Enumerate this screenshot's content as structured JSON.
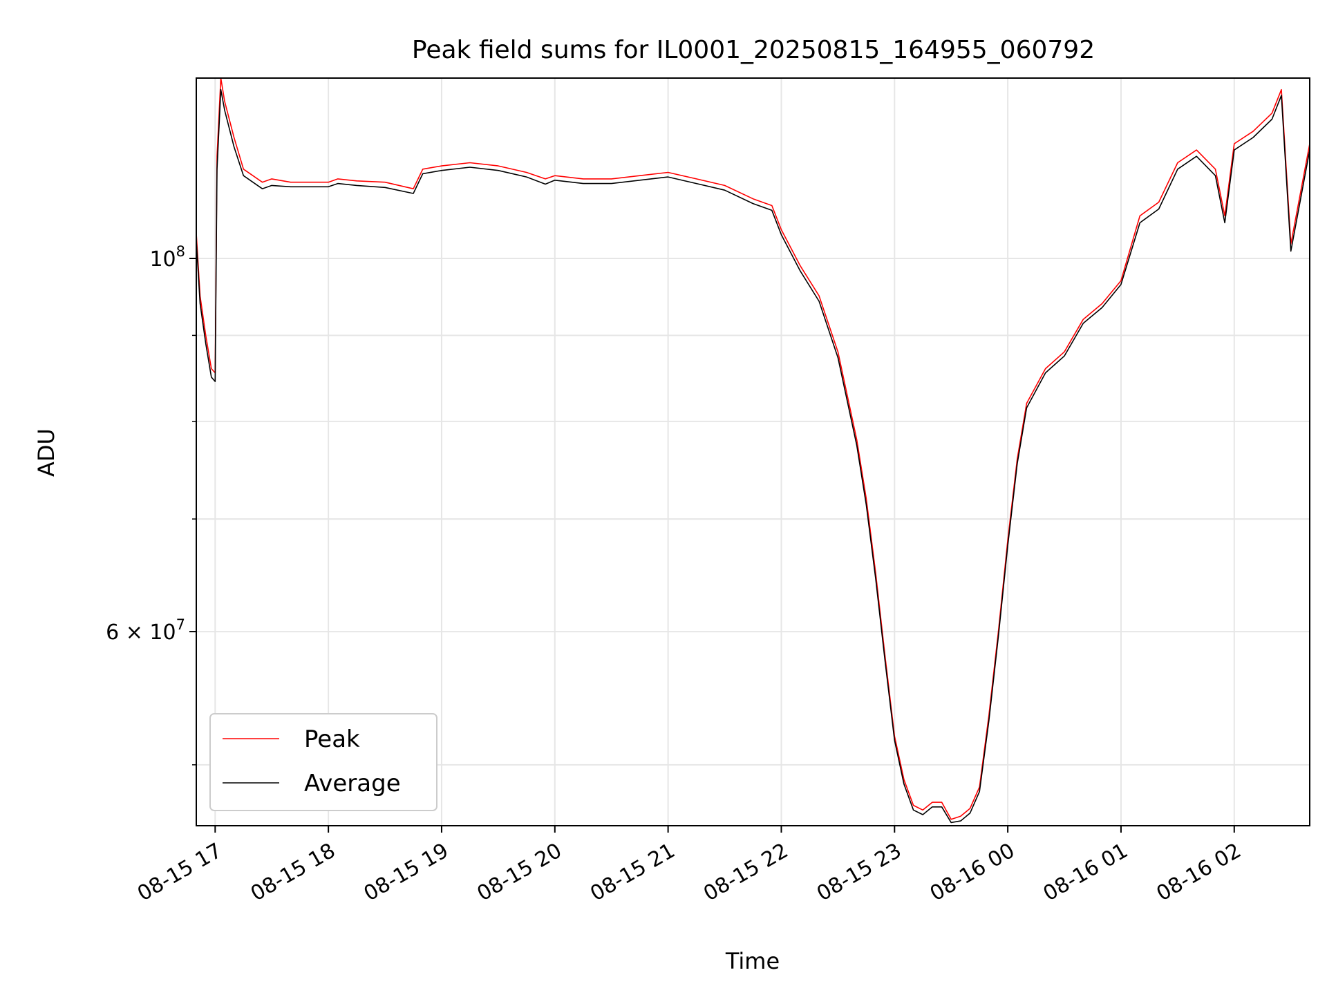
{
  "chart_data": {
    "type": "line",
    "title": "Peak field sums for IL0001_20250815_164955_060792",
    "xlabel": "Time",
    "ylabel": "ADU",
    "yscale": "log",
    "grid": true,
    "legend_position": "lower-left",
    "x_range": [
      "2025-08-15 16:50",
      "2025-08-16 02:40"
    ],
    "ylim": [
      46000000,
      128000000
    ],
    "x_ticks": [
      "08-15 17",
      "08-15 18",
      "08-15 19",
      "08-15 20",
      "08-15 21",
      "08-15 22",
      "08-15 23",
      "08-16 00",
      "08-16 01",
      "08-16 02"
    ],
    "y_ticks": [
      {
        "value": 100000000,
        "base": "10",
        "exp": "8",
        "mant": ""
      },
      {
        "value": 60000000,
        "base": "10",
        "exp": "7",
        "mant": "6 × "
      }
    ],
    "y_minor_ticks": [
      50000000,
      70000000,
      80000000,
      90000000
    ],
    "x": [
      "2025-08-15 16:50",
      "2025-08-15 16:52",
      "2025-08-15 16:55",
      "2025-08-15 16:58",
      "2025-08-15 17:00",
      "2025-08-15 17:01",
      "2025-08-15 17:03",
      "2025-08-15 17:05",
      "2025-08-15 17:10",
      "2025-08-15 17:15",
      "2025-08-15 17:20",
      "2025-08-15 17:25",
      "2025-08-15 17:30",
      "2025-08-15 17:40",
      "2025-08-15 17:50",
      "2025-08-15 18:00",
      "2025-08-15 18:05",
      "2025-08-15 18:15",
      "2025-08-15 18:30",
      "2025-08-15 18:45",
      "2025-08-15 18:50",
      "2025-08-15 19:00",
      "2025-08-15 19:15",
      "2025-08-15 19:30",
      "2025-08-15 19:45",
      "2025-08-15 19:55",
      "2025-08-15 20:00",
      "2025-08-15 20:15",
      "2025-08-15 20:30",
      "2025-08-15 20:45",
      "2025-08-15 21:00",
      "2025-08-15 21:15",
      "2025-08-15 21:30",
      "2025-08-15 21:45",
      "2025-08-15 21:55",
      "2025-08-15 22:00",
      "2025-08-15 22:10",
      "2025-08-15 22:20",
      "2025-08-15 22:30",
      "2025-08-15 22:40",
      "2025-08-15 22:45",
      "2025-08-15 22:50",
      "2025-08-15 22:55",
      "2025-08-15 23:00",
      "2025-08-15 23:05",
      "2025-08-15 23:10",
      "2025-08-15 23:15",
      "2025-08-15 23:20",
      "2025-08-15 23:25",
      "2025-08-15 23:30",
      "2025-08-15 23:35",
      "2025-08-15 23:40",
      "2025-08-15 23:45",
      "2025-08-15 23:50",
      "2025-08-15 23:55",
      "2025-08-16 00:00",
      "2025-08-16 00:05",
      "2025-08-16 00:10",
      "2025-08-16 00:20",
      "2025-08-16 00:30",
      "2025-08-16 00:40",
      "2025-08-16 00:50",
      "2025-08-16 01:00",
      "2025-08-16 01:10",
      "2025-08-16 01:20",
      "2025-08-16 01:30",
      "2025-08-16 01:40",
      "2025-08-16 01:50",
      "2025-08-16 01:55",
      "2025-08-16 02:00",
      "2025-08-16 02:10",
      "2025-08-16 02:20",
      "2025-08-16 02:25",
      "2025-08-16 02:30",
      "2025-08-16 02:40"
    ],
    "series": [
      {
        "name": "Peak",
        "color": "#ff0000",
        "values": [
          103500000,
          95000000,
          90000000,
          86000000,
          85500000,
          115000000,
          128000000,
          124000000,
          118000000,
          113000000,
          112000000,
          111000000,
          111500000,
          111000000,
          111000000,
          111000000,
          111500000,
          111200000,
          111000000,
          110000000,
          113000000,
          113500000,
          114000000,
          113500000,
          112500000,
          111500000,
          112000000,
          111500000,
          111500000,
          112000000,
          112500000,
          111500000,
          110500000,
          108500000,
          107500000,
          104000000,
          99000000,
          95000000,
          88000000,
          78000000,
          72000000,
          65000000,
          58000000,
          52000000,
          49000000,
          47300000,
          47000000,
          47500000,
          47500000,
          46400000,
          46600000,
          47100000,
          48500000,
          53500000,
          60000000,
          68000000,
          76000000,
          82000000,
          86000000,
          88000000,
          92000000,
          94000000,
          97000000,
          106000000,
          108000000,
          114000000,
          116000000,
          113000000,
          106000000,
          117000000,
          119000000,
          122000000,
          126000000,
          102000000,
          117000000
        ]
      },
      {
        "name": "Average",
        "color": "#000000",
        "values": [
          102500000,
          94000000,
          89000000,
          85000000,
          84500000,
          113000000,
          126000000,
          122500000,
          116500000,
          112000000,
          111000000,
          110000000,
          110500000,
          110300000,
          110300000,
          110300000,
          110800000,
          110500000,
          110200000,
          109300000,
          112300000,
          112800000,
          113300000,
          112800000,
          111800000,
          110700000,
          111300000,
          110800000,
          110800000,
          111300000,
          111800000,
          110800000,
          109800000,
          107800000,
          106800000,
          103300000,
          98300000,
          94300000,
          87300000,
          77400000,
          71400000,
          64500000,
          57600000,
          51700000,
          48700000,
          47000000,
          46700000,
          47200000,
          47200000,
          46200000,
          46300000,
          46800000,
          48200000,
          53100000,
          59600000,
          67500000,
          75500000,
          81500000,
          85500000,
          87500000,
          91500000,
          93500000,
          96500000,
          105000000,
          107000000,
          113000000,
          115000000,
          112000000,
          105000000,
          116000000,
          118000000,
          121000000,
          125000000,
          101000000,
          116000000
        ]
      }
    ]
  }
}
